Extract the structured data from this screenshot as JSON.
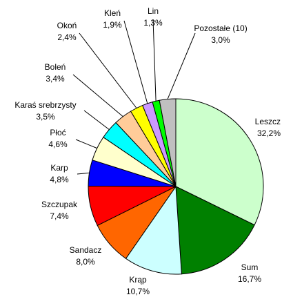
{
  "chart_data": {
    "type": "pie",
    "categories": [
      "Leszcz",
      "Sum",
      "Krąp",
      "Sandacz",
      "Szczupak",
      "Karp",
      "Płoć",
      "Karaś srebrzysty",
      "Boleń",
      "Okoń",
      "Kleń",
      "Lin",
      "Pozostałe (10)"
    ],
    "values": [
      32.2,
      16.7,
      10.7,
      8.0,
      7.4,
      4.8,
      4.6,
      3.5,
      3.4,
      2.4,
      1.9,
      1.3,
      3.0
    ],
    "value_labels": [
      "32,2%",
      "16,7%",
      "10,7%",
      "8,0%",
      "7,4%",
      "4,8%",
      "4,6%",
      "3,5%",
      "3,4%",
      "2,4%",
      "1,9%",
      "1,3%",
      "3,0%"
    ],
    "colors": [
      "#ccffcc",
      "#008000",
      "#ccffff",
      "#ff6600",
      "#ff0000",
      "#0000ff",
      "#ffffcc",
      "#00ffff",
      "#ffcc99",
      "#ffff00",
      "#cc99ff",
      "#00ff00",
      "#c0c0c0"
    ]
  }
}
